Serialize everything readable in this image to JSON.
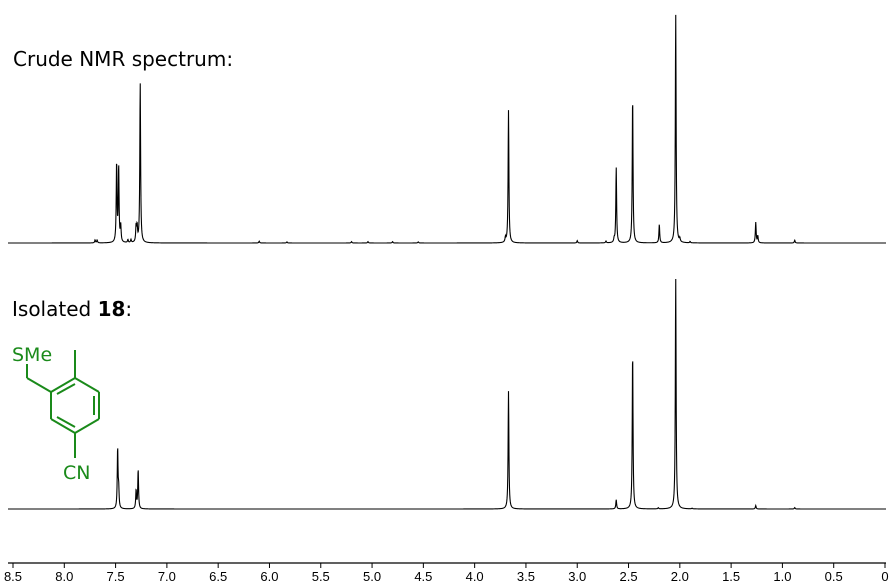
{
  "labels": {
    "crude": "Crude NMR spectrum:",
    "isolated_prefix": "Isolated ",
    "isolated_compound": "18",
    "isolated_suffix": ":"
  },
  "structure": {
    "substituent_top": "SMe",
    "substituent_bottom": "CN",
    "color": "#1a8a1a"
  },
  "chart_data": {
    "type": "line",
    "xlabel": "",
    "ylabel": "",
    "x_axis": {
      "range": [
        8.5,
        0.0
      ],
      "reversed": true,
      "ticks": [
        8.5,
        8.0,
        7.5,
        7.0,
        6.5,
        6.0,
        5.5,
        5.0,
        4.5,
        4.0,
        3.5,
        3.0,
        2.5,
        2.0,
        1.5,
        1.0,
        0.5,
        0.0
      ],
      "tick_labels": [
        "8.5",
        "8.0",
        "7.5",
        "7.0",
        "6.5",
        "6.0",
        "5.5",
        "5.0",
        "4.5",
        "4.0",
        "3.5",
        "3.0",
        "2.5",
        "2.0",
        "1.5",
        "1.0",
        "0.5",
        "0"
      ]
    },
    "grid": false,
    "line_color": "#000000",
    "spectra": [
      {
        "peaks_ppm_relative_intensity": [
          [
            7.7,
            0.013
          ],
          [
            7.68,
            0.013
          ],
          [
            7.49,
            0.35
          ],
          [
            7.47,
            0.33
          ],
          [
            7.45,
            0.07
          ],
          [
            7.38,
            0.013
          ],
          [
            7.35,
            0.013
          ],
          [
            7.3,
            0.07
          ],
          [
            7.29,
            0.065
          ],
          [
            7.26,
            0.7
          ],
          [
            6.1,
            0.008
          ],
          [
            5.83,
            0.005
          ],
          [
            5.2,
            0.006
          ],
          [
            5.04,
            0.006
          ],
          [
            4.8,
            0.006
          ],
          [
            4.55,
            0.005
          ],
          [
            3.7,
            0.02
          ],
          [
            3.67,
            0.58
          ],
          [
            3.0,
            0.01
          ],
          [
            2.72,
            0.008
          ],
          [
            2.64,
            0.015
          ],
          [
            2.62,
            0.33
          ],
          [
            2.46,
            0.64
          ],
          [
            2.2,
            0.08
          ],
          [
            2.04,
            1.0
          ],
          [
            2.0,
            0.015
          ],
          [
            1.9,
            0.006
          ],
          [
            1.26,
            0.09
          ],
          [
            1.24,
            0.03
          ],
          [
            0.88,
            0.012
          ]
        ]
      },
      {
        "peaks_ppm_relative_intensity": [
          [
            7.48,
            0.26
          ],
          [
            7.47,
            0.08
          ],
          [
            7.3,
            0.08
          ],
          [
            7.28,
            0.17
          ],
          [
            3.67,
            0.51
          ],
          [
            2.62,
            0.04
          ],
          [
            2.46,
            0.68
          ],
          [
            2.21,
            0.005
          ],
          [
            2.04,
            1.0
          ],
          [
            1.88,
            0.003
          ],
          [
            1.26,
            0.015
          ],
          [
            0.88,
            0.006
          ]
        ]
      }
    ]
  }
}
